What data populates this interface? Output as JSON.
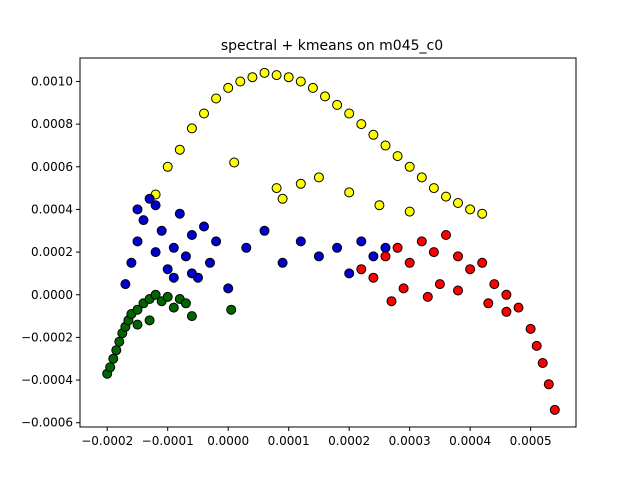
{
  "chart_data": {
    "type": "scatter",
    "title": "spectral + kmeans on m045_c0",
    "xlabel": "",
    "ylabel": "",
    "xlim": [
      -0.000245,
      0.000575
    ],
    "ylim": [
      -0.00062,
      0.00111
    ],
    "x_ticks": [
      -0.0002,
      -0.0001,
      0.0,
      0.0001,
      0.0002,
      0.0003,
      0.0004,
      0.0005
    ],
    "x_tick_labels": [
      "−0.0002",
      "−0.0001",
      "0.0000",
      "0.0001",
      "0.0002",
      "0.0003",
      "0.0004",
      "0.0005"
    ],
    "y_ticks": [
      -0.0006,
      -0.0004,
      -0.0002,
      0.0,
      0.0002,
      0.0004,
      0.0006,
      0.0008,
      0.001
    ],
    "y_tick_labels": [
      "−0.0006",
      "−0.0004",
      "−0.0002",
      "0.0000",
      "0.0002",
      "0.0004",
      "0.0006",
      "0.0008",
      "0.0010"
    ],
    "grid": false,
    "legend": "none",
    "marker_edge_color": "#000000",
    "series": [
      {
        "color": "#ffff00",
        "x": [
          -0.00012,
          -0.0001,
          -8e-05,
          -6e-05,
          -4e-05,
          -2e-05,
          0.0,
          2e-05,
          4e-05,
          6e-05,
          8e-05,
          0.0001,
          0.00012,
          0.00014,
          0.00016,
          0.00018,
          0.0002,
          0.00022,
          0.00024,
          0.00026,
          0.00028,
          0.0003,
          0.00032,
          0.00034,
          0.00036,
          0.00038,
          0.0004,
          0.00042,
          8e-05,
          1e-05,
          9e-05,
          0.00015,
          0.0002,
          0.00025,
          0.0003,
          0.00012
        ],
        "y": [
          0.00047,
          0.0006,
          0.00068,
          0.00078,
          0.00085,
          0.00092,
          0.00097,
          0.001,
          0.00102,
          0.00104,
          0.00103,
          0.00102,
          0.001,
          0.00097,
          0.00093,
          0.00089,
          0.00085,
          0.0008,
          0.00075,
          0.0007,
          0.00065,
          0.0006,
          0.00055,
          0.0005,
          0.00046,
          0.00043,
          0.0004,
          0.00038,
          0.0005,
          0.00062,
          0.00045,
          0.00055,
          0.00048,
          0.00042,
          0.00039,
          0.00052
        ]
      },
      {
        "color": "#0000cc",
        "x": [
          -0.00017,
          -0.00016,
          -0.00015,
          -0.00014,
          -0.00013,
          -0.00012,
          -0.00011,
          -0.0001,
          -9e-05,
          -8e-05,
          -7e-05,
          -6e-05,
          -5e-05,
          -4e-05,
          -3e-05,
          -2e-05,
          0.0,
          3e-05,
          6e-05,
          9e-05,
          0.00012,
          0.00015,
          0.00018,
          0.0002,
          0.00022,
          0.00024,
          0.00026,
          -0.00015,
          -0.00012,
          -9e-05,
          -6e-05
        ],
        "y": [
          5e-05,
          0.00015,
          0.00025,
          0.00035,
          0.00045,
          0.0002,
          0.0003,
          0.00012,
          0.00022,
          0.00038,
          0.00018,
          0.00028,
          8e-05,
          0.00032,
          0.00015,
          0.00025,
          3e-05,
          0.00022,
          0.0003,
          0.00015,
          0.00025,
          0.00018,
          0.00022,
          0.0001,
          0.00025,
          0.00018,
          0.00022,
          0.0004,
          0.00042,
          8e-05,
          0.0001
        ]
      },
      {
        "color": "#ff0000",
        "x": [
          0.00022,
          0.00024,
          0.00026,
          0.00028,
          0.0003,
          0.00032,
          0.00034,
          0.00036,
          0.00038,
          0.0004,
          0.00042,
          0.00044,
          0.00046,
          0.00048,
          0.0005,
          0.00051,
          0.00052,
          0.00053,
          0.00054,
          0.00027,
          0.00033,
          0.00038,
          0.00043,
          0.00046,
          0.00029,
          0.00035
        ],
        "y": [
          0.00012,
          8e-05,
          0.00018,
          0.00022,
          0.00015,
          0.00025,
          0.0002,
          0.00028,
          0.00018,
          0.00012,
          0.00015,
          5e-05,
          0.0,
          -6e-05,
          -0.00016,
          -0.00024,
          -0.00032,
          -0.00042,
          -0.00054,
          -3e-05,
          -1e-05,
          2e-05,
          -4e-05,
          -8e-05,
          3e-05,
          5e-05
        ]
      },
      {
        "color": "#006600",
        "x": [
          -0.0002,
          -0.000195,
          -0.00019,
          -0.000185,
          -0.00018,
          -0.000175,
          -0.00017,
          -0.000165,
          -0.00016,
          -0.00015,
          -0.00014,
          -0.00013,
          -0.00012,
          -0.00011,
          -0.0001,
          -9e-05,
          -8e-05,
          -7e-05,
          -6e-05,
          5e-06,
          -0.00015,
          -0.00013
        ],
        "y": [
          -0.00037,
          -0.00034,
          -0.0003,
          -0.00026,
          -0.00022,
          -0.00018,
          -0.00015,
          -0.00012,
          -9e-05,
          -7e-05,
          -4e-05,
          -2e-05,
          0.0,
          -3e-05,
          -1e-05,
          -6e-05,
          -2e-05,
          -4e-05,
          -0.0001,
          -7e-05,
          -0.00014,
          -0.00012
        ]
      }
    ]
  }
}
